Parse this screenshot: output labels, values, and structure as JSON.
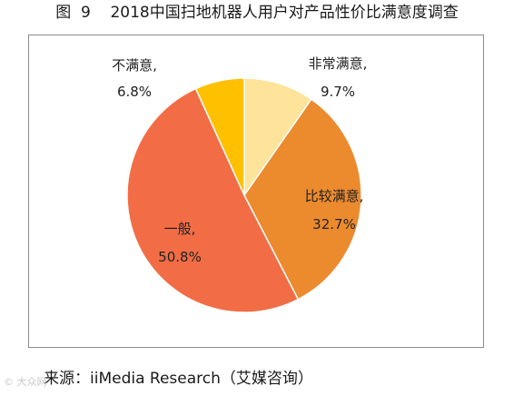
{
  "figure": {
    "title": "图  9    2018中国扫地机器人用户对产品性价比满意度调查",
    "source": "来源：iiMedia Research（艾媒咨询）",
    "watermark": "© 大众网"
  },
  "chart_data": {
    "type": "pie",
    "title": "",
    "unit": "%",
    "start_angle_deg": 0,
    "direction": "clockwise",
    "slices": [
      {
        "label": "非常满意,",
        "value": 9.7,
        "display": "9.7%",
        "color": "#FDE49A"
      },
      {
        "label": "比较满意,",
        "value": 32.7,
        "display": "32.7%",
        "color": "#EC8A2E"
      },
      {
        "label": "一般,",
        "value": 50.8,
        "display": "50.8%",
        "color": "#F26D45"
      },
      {
        "label": "不满意,",
        "value": 6.8,
        "display": "6.8%",
        "color": "#FFC000"
      }
    ],
    "legend": "none"
  }
}
